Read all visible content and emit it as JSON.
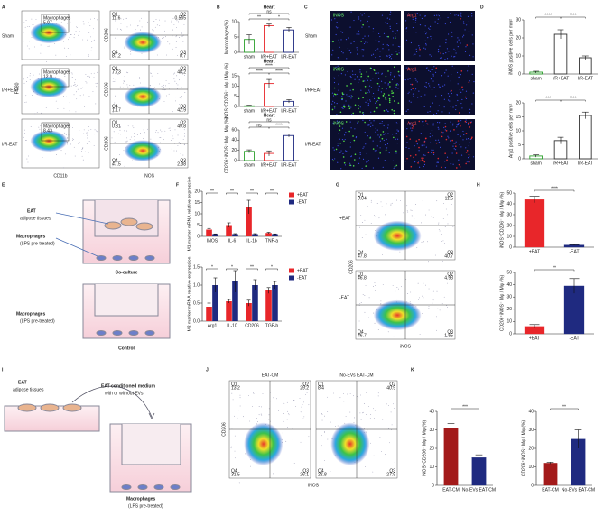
{
  "panels": [
    "A",
    "B",
    "C",
    "D",
    "E",
    "F",
    "G",
    "H",
    "I",
    "J",
    "K"
  ],
  "quadrants": [
    "Q1",
    "Q2",
    "Q3",
    "Q4"
  ],
  "flow_a": {
    "rows": [
      "Sham",
      "I/R+EAT",
      "I/R-EAT"
    ],
    "gate": "Macrophages",
    "gate_values": [
      5.07,
      12.9,
      8.43
    ],
    "x1": "CD11b",
    "y1": "F4/80",
    "x2": "iNOS",
    "y2": "CD206",
    "quadrant_values": [
      [
        11.6,
        0.565,
        0.7,
        87.2
      ],
      [
        7.73,
        48.2,
        42.9,
        1.17
      ],
      [
        0.31,
        49.8,
        2.38,
        47.5
      ]
    ]
  },
  "images_c": {
    "rows": [
      "Sham",
      "I/R+EAT",
      "I/R-EAT"
    ],
    "stains": [
      "iNOS",
      "Arg1"
    ]
  },
  "diagram_e": {
    "tissue": "EAT",
    "tissue_sub": "adipose tissues",
    "macrophages": "Macrophages",
    "lps": "(LPS pre-treated)",
    "coculture": "Co-culture",
    "control": "Control"
  },
  "flow_g": {
    "rows": [
      "+EAT",
      "-EAT"
    ],
    "x": "iNOS",
    "y": "CD206",
    "quadrant_values": [
      [
        0.04,
        11.5,
        40.7,
        47.8
      ],
      [
        46.8,
        4.93,
        1.55,
        46.7
      ]
    ]
  },
  "diagram_i": {
    "tissue": "EAT",
    "tissue_sub": "adipose tissues",
    "medium": "EAT-conditioned medium",
    "medium_sub": "with or without EVs",
    "macrophages": "Macrophages",
    "lps": "(LPS pre-treated)"
  },
  "flow_j": {
    "columns": [
      "EAT-CM",
      "No-EVs EAT-CM"
    ],
    "x": "iNOS",
    "y": "CD206",
    "quadrant_values": [
      [
        13.2,
        29.2,
        26.1,
        31.5
      ],
      [
        8.4,
        40.9,
        27.9,
        22.8
      ]
    ]
  },
  "chart_data": [
    {
      "type": "bar",
      "title": "Heart",
      "ylabel": "Macrophages(%)",
      "categories": [
        "sham",
        "I/R+EAT",
        "I/R-EAT"
      ],
      "values": [
        4.2,
        8.7,
        7.3
      ],
      "errors": [
        1.5,
        0.5,
        0.8
      ],
      "colors": [
        "#2ca02c",
        "#e8262a",
        "#1f2a80"
      ],
      "bar_style": "outline",
      "ylim": [
        0,
        10
      ],
      "yticks": [
        0,
        5,
        10
      ],
      "annotations": [
        "**",
        "*",
        "ns"
      ]
    },
    {
      "type": "bar",
      "title": "Heart",
      "ylabel": "iNOS⁺CD206⁻ Mφ / Mφ (%)",
      "categories": [
        "sham",
        "I/R+EAT",
        "I/R-EAT"
      ],
      "values": [
        0.3,
        11.2,
        2.5
      ],
      "errors": [
        0.3,
        2,
        0.8
      ],
      "colors": [
        "#2ca02c",
        "#e8262a",
        "#1f2a80"
      ],
      "bar_style": "outline",
      "ylim": [
        0,
        15
      ],
      "yticks": [
        0,
        5,
        10,
        15
      ],
      "annotations": [
        "****",
        "****",
        "****"
      ]
    },
    {
      "type": "bar",
      "title": "Heart",
      "ylabel": "CD206⁺iNOS⁻ Mφ / Mφ (%)",
      "categories": [
        "sham",
        "I/R+EAT",
        "I/R-EAT"
      ],
      "values": [
        18,
        14,
        49
      ],
      "errors": [
        3,
        5,
        3
      ],
      "colors": [
        "#2ca02c",
        "#e8262a",
        "#1f2a80"
      ],
      "bar_style": "outline",
      "ylim": [
        0,
        60
      ],
      "yticks": [
        0,
        20,
        40,
        60
      ],
      "annotations": [
        "ns",
        "****",
        "ns"
      ]
    },
    {
      "type": "bar",
      "ylabel": "iNOS positive cells per mm²",
      "categories": [
        "sham",
        "I/R+EAT",
        "I/R-EAT"
      ],
      "values": [
        1,
        22,
        9
      ],
      "errors": [
        0.5,
        2.5,
        1
      ],
      "colors": [
        "#2ca02c",
        "#333333",
        "#333333"
      ],
      "bar_style": "outline",
      "ylim": [
        0,
        30
      ],
      "yticks": [
        0,
        10,
        20,
        30
      ],
      "annotations": [
        "****",
        "****"
      ]
    },
    {
      "type": "bar",
      "ylabel": "Arg1 positive cells per mm²",
      "categories": [
        "sham",
        "I/R+EAT",
        "I/R-EAT"
      ],
      "values": [
        1,
        6.5,
        15.5
      ],
      "errors": [
        0.4,
        1.2,
        1.2
      ],
      "colors": [
        "#2ca02c",
        "#333333",
        "#333333"
      ],
      "bar_style": "outline",
      "ylim": [
        0,
        20
      ],
      "yticks": [
        0,
        5,
        10,
        15,
        20
      ],
      "annotations": [
        "***",
        "****"
      ]
    },
    {
      "type": "grouped_bar",
      "ylabel": "M1 marker mRNA relative expression",
      "categories": [
        "INOS",
        "IL-6",
        "IL-1b",
        "TNF-a"
      ],
      "series": [
        {
          "name": "+EAT",
          "color": "#e8262a",
          "values": [
            3,
            5,
            13,
            1.5
          ],
          "errors": [
            0.5,
            1,
            3,
            0.3
          ]
        },
        {
          "name": "-EAT",
          "color": "#1f2a80",
          "values": [
            1,
            1,
            1,
            1
          ],
          "errors": [
            0.1,
            0.2,
            0.2,
            0.1
          ]
        }
      ],
      "ylim": [
        0,
        20
      ],
      "yticks": [
        0,
        5,
        10,
        15,
        20
      ],
      "annotations": [
        "**",
        "**",
        "**",
        "**"
      ],
      "legend": "right"
    },
    {
      "type": "grouped_bar",
      "ylabel": "M2 marker mRNA relative expression",
      "categories": [
        "Arg1",
        "IL-10",
        "CD206",
        "TGF-b"
      ],
      "series": [
        {
          "name": "+EAT",
          "color": "#e8262a",
          "values": [
            0.4,
            0.55,
            0.5,
            0.85
          ],
          "errors": [
            0.1,
            0.05,
            0.08,
            0.08
          ]
        },
        {
          "name": "-EAT",
          "color": "#1f2a80",
          "values": [
            1,
            1.1,
            1,
            1
          ],
          "errors": [
            0.2,
            0.3,
            0.15,
            0.1
          ]
        }
      ],
      "ylim": [
        0,
        1.5
      ],
      "yticks": [
        {
          "value": 0,
          "label": "0.0"
        },
        0.5,
        {
          "value": 1,
          "label": "1.0"
        },
        1.5
      ],
      "annotations": [
        "*",
        "*",
        "**",
        "*"
      ],
      "legend": "right"
    },
    {
      "type": "bar",
      "ylabel": "iNOS⁺CD206⁻ Mφ / Mφ (%)",
      "categories": [
        "+EAT",
        "-EAT"
      ],
      "values": [
        44,
        2
      ],
      "errors": [
        3,
        0.3
      ],
      "colors": [
        "#e8262a",
        "#1f2a80"
      ],
      "bar_style": "filled",
      "ylim": [
        0,
        50
      ],
      "yticks": [
        0,
        10,
        20,
        30,
        40,
        50
      ],
      "annotations": [
        "****"
      ]
    },
    {
      "type": "bar",
      "ylabel": "CD206⁺iNOS⁻ Mφ / Mφ (%)",
      "categories": [
        "+EAT",
        "-EAT"
      ],
      "values": [
        6,
        39
      ],
      "errors": [
        1.5,
        6
      ],
      "colors": [
        "#e8262a",
        "#1f2a80"
      ],
      "bar_style": "filled",
      "ylim": [
        0,
        50
      ],
      "yticks": [
        0,
        10,
        20,
        30,
        40,
        50
      ],
      "annotations": [
        "**"
      ]
    },
    {
      "type": "bar",
      "ylabel": "iNOS⁺CD206⁻ Mφ / Mφ (%)",
      "categories": [
        "EAT-CM",
        "No-EVs EAT-CM"
      ],
      "values": [
        31,
        15
      ],
      "errors": [
        2.5,
        1.5
      ],
      "colors": [
        "#a31a1a",
        "#1f2a80"
      ],
      "bar_style": "filled",
      "ylim": [
        0,
        40
      ],
      "yticks": [
        0,
        10,
        20,
        30,
        40
      ],
      "annotations": [
        "***"
      ]
    },
    {
      "type": "bar",
      "ylabel": "CD206⁺iNOS⁻ Mφ / Mφ (%)",
      "categories": [
        "EAT-CM",
        "No-EVs EAT-CM"
      ],
      "values": [
        12,
        25
      ],
      "errors": [
        0.5,
        5
      ],
      "colors": [
        "#a31a1a",
        "#1f2a80"
      ],
      "bar_style": "filled",
      "ylim": [
        0,
        40
      ],
      "yticks": [
        0,
        10,
        20,
        30,
        40
      ],
      "annotations": [
        "**"
      ]
    }
  ]
}
